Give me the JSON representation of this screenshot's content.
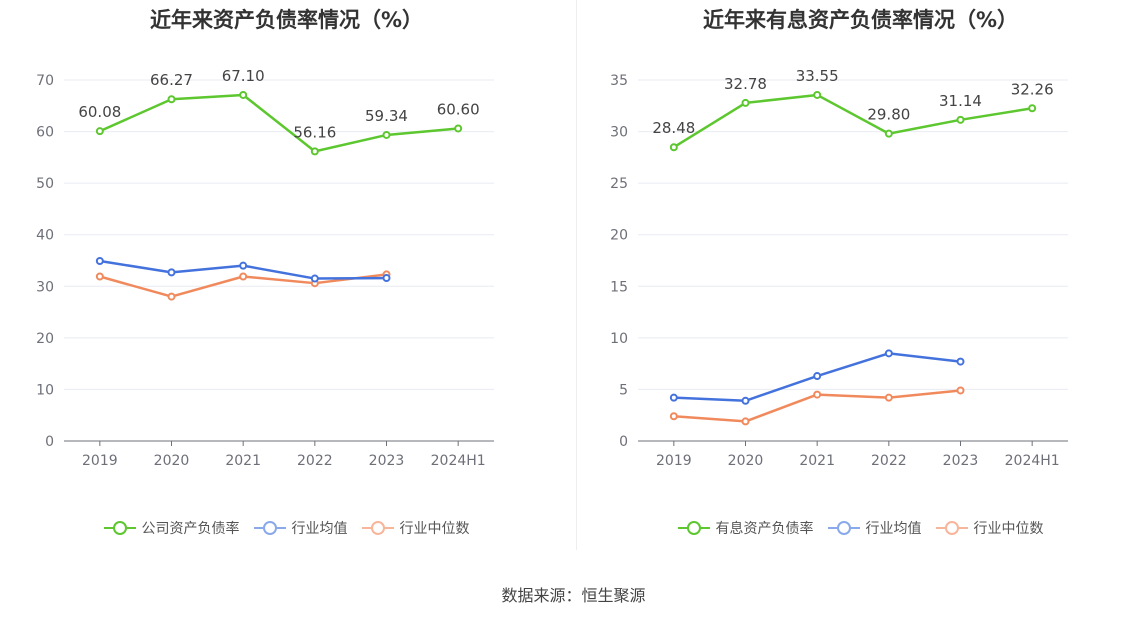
{
  "chart_data": [
    {
      "type": "line",
      "title": "近年来资产负债率情况（%）",
      "categories": [
        "2019",
        "2020",
        "2021",
        "2022",
        "2023",
        "2024H1"
      ],
      "ylim": [
        0,
        70
      ],
      "yticks": [
        0,
        10,
        20,
        30,
        40,
        50,
        60,
        70
      ],
      "grid": true,
      "legend_position": "bottom",
      "series": [
        {
          "name": "公司资产负债率",
          "color": "#5cc72e",
          "labeled": true,
          "values": [
            60.08,
            66.27,
            67.1,
            56.16,
            59.34,
            60.6
          ]
        },
        {
          "name": "行业均值",
          "color": "#4472dd",
          "legend_color": "#8aa9ea",
          "labeled": false,
          "values": [
            34.9,
            32.7,
            34.0,
            31.5,
            31.6,
            null
          ]
        },
        {
          "name": "行业中位数",
          "color": "#f08a5d",
          "legend_color": "#f7b59a",
          "labeled": false,
          "values": [
            31.9,
            28.0,
            31.9,
            30.6,
            32.3,
            null
          ]
        }
      ]
    },
    {
      "type": "line",
      "title": "近年来有息资产负债率情况（%）",
      "categories": [
        "2019",
        "2020",
        "2021",
        "2022",
        "2023",
        "2024H1"
      ],
      "ylim": [
        0,
        35
      ],
      "yticks": [
        0,
        5,
        10,
        15,
        20,
        25,
        30,
        35
      ],
      "grid": true,
      "legend_position": "bottom",
      "series": [
        {
          "name": "有息资产负债率",
          "color": "#5cc72e",
          "labeled": true,
          "values": [
            28.48,
            32.78,
            33.55,
            29.8,
            31.14,
            32.26
          ]
        },
        {
          "name": "行业均值",
          "color": "#4472dd",
          "legend_color": "#8aa9ea",
          "labeled": false,
          "values": [
            4.2,
            3.9,
            6.3,
            8.5,
            7.7,
            null
          ]
        },
        {
          "name": "行业中位数",
          "color": "#f08a5d",
          "legend_color": "#f7b59a",
          "labeled": false,
          "values": [
            2.4,
            1.9,
            4.5,
            4.2,
            4.9,
            null
          ]
        }
      ]
    }
  ],
  "source": "数据来源：恒生聚源"
}
